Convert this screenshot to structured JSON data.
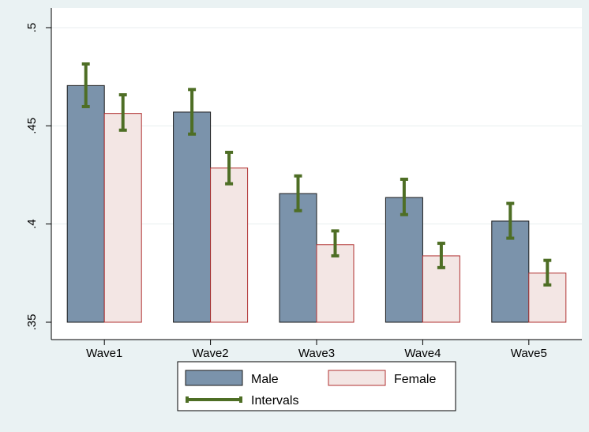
{
  "chart_data": {
    "type": "bar",
    "categories": [
      "Wave1",
      "Wave2",
      "Wave3",
      "Wave4",
      "Wave5"
    ],
    "series": [
      {
        "name": "Male",
        "values": [
          0.4705,
          0.457,
          0.4155,
          0.4135,
          0.4015
        ],
        "ci_low": [
          0.4598,
          0.4458,
          0.4068,
          0.4048,
          0.3928
        ],
        "ci_high": [
          0.4815,
          0.4685,
          0.4245,
          0.4228,
          0.4105
        ],
        "color": "#7b93ab"
      },
      {
        "name": "Female",
        "values": [
          0.4563,
          0.4285,
          0.3895,
          0.3838,
          0.375
        ],
        "ci_low": [
          0.4478,
          0.4205,
          0.3838,
          0.3778,
          0.369
        ],
        "ci_high": [
          0.4658,
          0.4365,
          0.3965,
          0.3902,
          0.3815
        ],
        "color": "#f3e6e4",
        "border": "#b03030"
      }
    ],
    "intervals_label": "Intervals",
    "interval_color": "#4e6e25",
    "ylim": [
      0.35,
      0.5
    ],
    "yticks": [
      ".35",
      ".4",
      ".45",
      ".5"
    ],
    "ytick_values": [
      0.35,
      0.4,
      0.45,
      0.5
    ],
    "grid": true,
    "legend_position": "bottom"
  }
}
